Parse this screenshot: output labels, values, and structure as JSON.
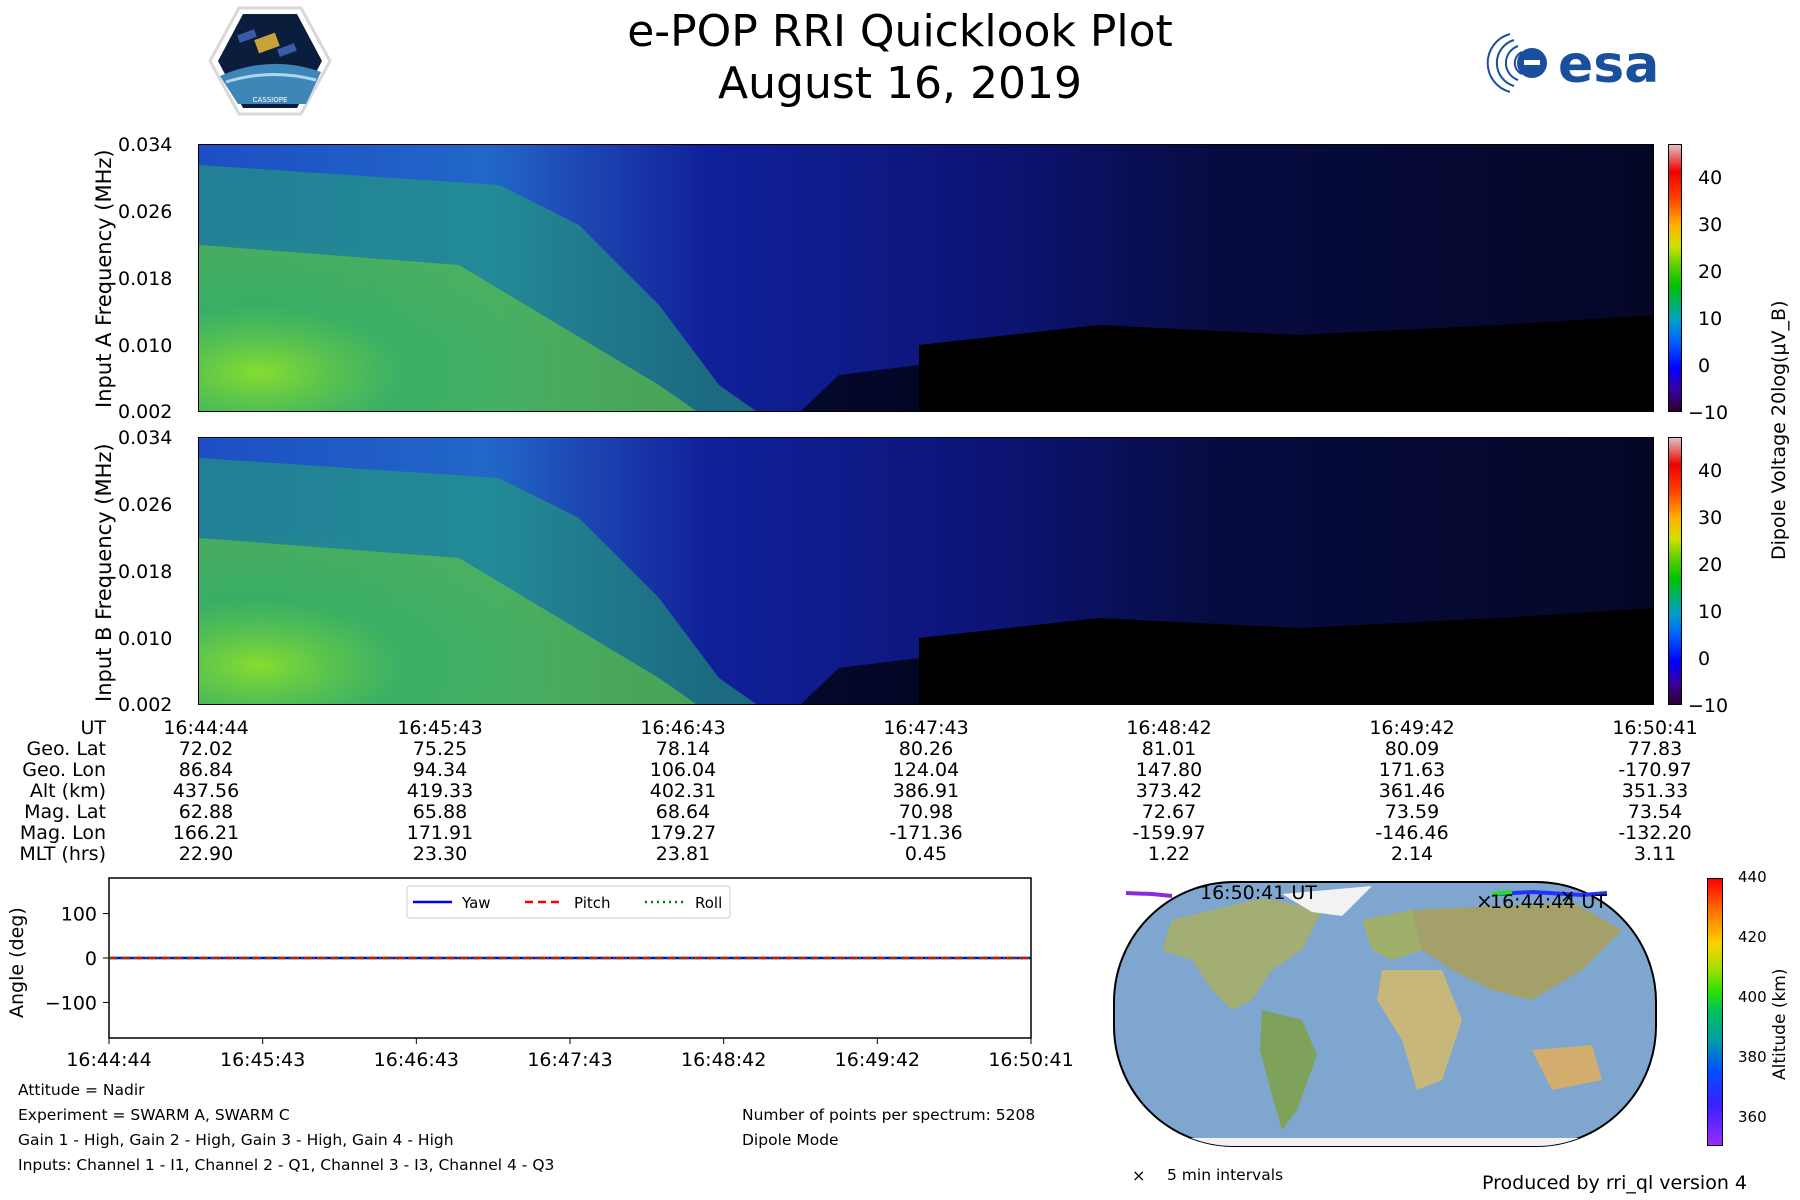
{
  "header": {
    "title": "e-POP RRI Quicklook Plot",
    "date": "August 16, 2019",
    "logo_left_text": "CASSIOPE",
    "logo_right_text": "esa"
  },
  "chart_data": [
    {
      "type": "heatmap",
      "ylabel": "Input A Frequency (MHz)",
      "yticks": [
        "0.034",
        "0.026",
        "0.018",
        "0.010",
        "0.002"
      ],
      "ylim": [
        0.002,
        0.034
      ],
      "colorbar": {
        "label": "Dipole Voltage 20log(μV_B)",
        "ticks": [
          "40",
          "30",
          "20",
          "10",
          "0",
          "−10"
        ],
        "range": [
          -10,
          47
        ]
      }
    },
    {
      "type": "heatmap",
      "ylabel": "Input B Frequency (MHz)",
      "yticks": [
        "0.034",
        "0.026",
        "0.018",
        "0.010",
        "0.002"
      ],
      "ylim": [
        0.002,
        0.034
      ],
      "colorbar": {
        "label": "Dipole Voltage 20log(μV_B)",
        "ticks": [
          "40",
          "30",
          "20",
          "10",
          "0",
          "−10"
        ],
        "range": [
          -10,
          47
        ]
      }
    },
    {
      "type": "line",
      "ylabel": "Angle (deg)",
      "yticks": [
        "100",
        "0",
        "−100"
      ],
      "ylim": [
        -180,
        180
      ],
      "x": [
        "16:44:44",
        "16:45:43",
        "16:46:43",
        "16:47:43",
        "16:48:42",
        "16:49:42",
        "16:50:41"
      ],
      "series": [
        {
          "name": "Yaw",
          "color": "#0000ff",
          "values": [
            0,
            0,
            0,
            0,
            0,
            0,
            0
          ]
        },
        {
          "name": "Pitch",
          "color": "#ff0000",
          "values": [
            0,
            0,
            0,
            0,
            0,
            0,
            0
          ]
        },
        {
          "name": "Roll",
          "color": "#008000",
          "values": [
            0,
            0,
            0,
            0,
            0,
            0,
            0
          ]
        }
      ]
    }
  ],
  "orbit_table": {
    "labels": [
      "UT",
      "Geo. Lat",
      "Geo. Lon",
      "Alt (km)",
      "Mag. Lat",
      "Mag. Lon",
      "MLT (hrs)"
    ],
    "columns": [
      [
        "16:44:44",
        "72.02",
        "86.84",
        "437.56",
        "62.88",
        "166.21",
        "22.90"
      ],
      [
        "16:45:43",
        "75.25",
        "94.34",
        "419.33",
        "65.88",
        "171.91",
        "23.30"
      ],
      [
        "16:46:43",
        "78.14",
        "106.04",
        "402.31",
        "68.64",
        "179.27",
        "23.81"
      ],
      [
        "16:47:43",
        "80.26",
        "124.04",
        "386.91",
        "70.98",
        "-171.36",
        "0.45"
      ],
      [
        "16:48:42",
        "81.01",
        "147.80",
        "373.42",
        "72.67",
        "-159.97",
        "1.22"
      ],
      [
        "16:49:42",
        "80.09",
        "171.63",
        "361.46",
        "73.59",
        "-146.46",
        "2.14"
      ],
      [
        "16:50:41",
        "77.83",
        "-170.97",
        "351.33",
        "73.54",
        "-132.20",
        "3.11"
      ]
    ]
  },
  "info": {
    "attitude": "Attitude = Nadir",
    "experiment": "Experiment = SWARM A, SWARM C",
    "gain": "Gain 1 - High, Gain 2 - High, Gain 3 - High, Gain 4 - High",
    "inputs": "Inputs: Channel 1 - I1, Channel 2 - Q1, Channel 3 - I3, Channel 4 - Q3",
    "points": "Number of points per spectrum: 5208",
    "mode": "Dipole Mode",
    "produced_by": "Produced by rri_ql version 4"
  },
  "map": {
    "start_label": "16:44:44 UT",
    "end_label": "16:50:41 UT",
    "legend": "5 min intervals",
    "colorbar": {
      "label": "Altitude (km)",
      "ticks": [
        "440",
        "420",
        "400",
        "380",
        "360"
      ],
      "range": [
        350,
        440
      ]
    }
  },
  "colors": {
    "spectrogram_low": "#000000",
    "spectrogram_mid": "#1a2ab0",
    "spectrogram_high": "#5fd02a",
    "ocean": "#6f9cc8",
    "land": "#8fae6a"
  }
}
